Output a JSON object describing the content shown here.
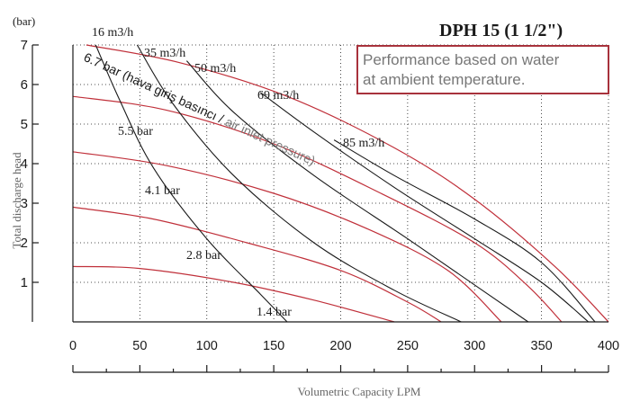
{
  "chart_data": {
    "type": "line",
    "title": "DPH 15 (1 1/2\")",
    "xlabel": "Volumetric Capacity LPM",
    "ylabel": "Total discharge head",
    "yunit": "(bar)",
    "xlim": [
      0,
      400
    ],
    "ylim": [
      0,
      7
    ],
    "x_ticks": [
      0,
      50,
      100,
      150,
      200,
      250,
      300,
      350,
      400
    ],
    "y_ticks": [
      1,
      2,
      3,
      4,
      5,
      6,
      7
    ],
    "grid": true,
    "note": [
      "Performance based on water",
      "at ambient temperature."
    ],
    "air_pressure_curves": [
      {
        "name": "6.7 bar",
        "points": [
          [
            10,
            7.0
          ],
          [
            80,
            6.55
          ],
          [
            160,
            5.7
          ],
          [
            240,
            4.4
          ],
          [
            300,
            3.1
          ],
          [
            360,
            1.4
          ],
          [
            400,
            0.0
          ]
        ]
      },
      {
        "name": "5.5 bar",
        "points": [
          [
            0,
            5.7
          ],
          [
            70,
            5.35
          ],
          [
            150,
            4.5
          ],
          [
            230,
            3.25
          ],
          [
            300,
            2.0
          ],
          [
            340,
            0.9
          ],
          [
            365,
            0.0
          ]
        ]
      },
      {
        "name": "4.1 bar",
        "points": [
          [
            0,
            4.3
          ],
          [
            70,
            3.95
          ],
          [
            150,
            3.25
          ],
          [
            220,
            2.35
          ],
          [
            280,
            1.3
          ],
          [
            320,
            0.0
          ]
        ]
      },
      {
        "name": "2.8 bar",
        "points": [
          [
            0,
            2.9
          ],
          [
            60,
            2.6
          ],
          [
            130,
            2.0
          ],
          [
            200,
            1.3
          ],
          [
            250,
            0.5
          ],
          [
            275,
            0.0
          ]
        ]
      },
      {
        "name": "1.4 bar",
        "points": [
          [
            0,
            1.4
          ],
          [
            50,
            1.35
          ],
          [
            120,
            1.0
          ],
          [
            180,
            0.55
          ],
          [
            240,
            0.0
          ]
        ]
      }
    ],
    "flow_curves": [
      {
        "name": "16 m3/h",
        "points": [
          [
            17,
            7.0
          ],
          [
            35,
            5.6
          ],
          [
            60,
            3.9
          ],
          [
            100,
            2.1
          ],
          [
            140,
            0.7
          ],
          [
            160,
            0.0
          ]
        ]
      },
      {
        "name": "35 m3/h",
        "points": [
          [
            48,
            7.0
          ],
          [
            75,
            5.5
          ],
          [
            120,
            3.7
          ],
          [
            180,
            2.0
          ],
          [
            240,
            0.8
          ],
          [
            290,
            0.0
          ]
        ]
      },
      {
        "name": "50 m3/h",
        "points": [
          [
            85,
            6.6
          ],
          [
            120,
            5.3
          ],
          [
            180,
            3.7
          ],
          [
            250,
            2.1
          ],
          [
            310,
            0.7
          ],
          [
            340,
            0.0
          ]
        ]
      },
      {
        "name": "69 m3/h",
        "points": [
          [
            140,
            5.8
          ],
          [
            180,
            4.8
          ],
          [
            240,
            3.4
          ],
          [
            300,
            2.1
          ],
          [
            350,
            1.0
          ],
          [
            385,
            0.0
          ]
        ]
      },
      {
        "name": "85 m3/h",
        "points": [
          [
            195,
            4.6
          ],
          [
            240,
            3.7
          ],
          [
            300,
            2.6
          ],
          [
            350,
            1.5
          ],
          [
            390,
            0.0
          ]
        ]
      }
    ],
    "flow_labels": [
      "16 m3/h",
      "35 m3/h",
      "50 m3/h",
      "69 m3/h",
      "85 m3/h"
    ],
    "pressure_labels": [
      "5.5 bar",
      "4.1 bar",
      "2.8 bar",
      "1.4 bar"
    ],
    "rotated_label": {
      "prefix": "6.7 bar (hava giriş basıncı / ",
      "suffix": "air inlet pressure)"
    }
  }
}
